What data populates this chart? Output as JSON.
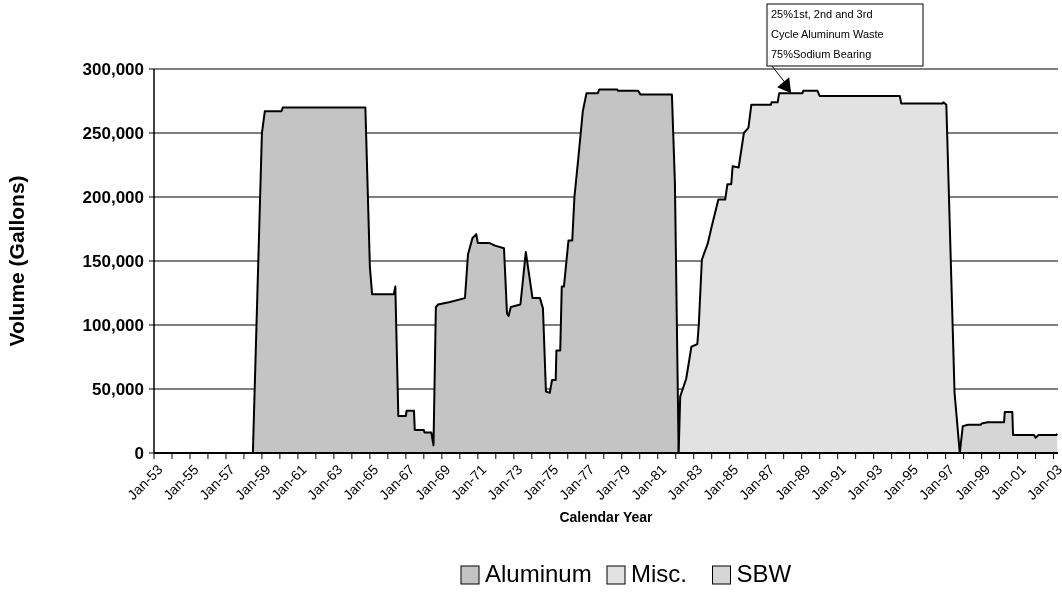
{
  "chart_data": {
    "type": "area",
    "xlabel": "Calendar Year",
    "ylabel": "Volume (Gallons)",
    "grid": "y",
    "legend": "bottom",
    "xlim": [
      "1953-01",
      "2003-04"
    ],
    "ylim": [
      0,
      300000
    ],
    "yticks": [
      0,
      {
        "value": 50000,
        "label": "50,000"
      },
      {
        "value": 100000,
        "label": "100,000"
      },
      {
        "value": 150000,
        "label": "150,000"
      },
      {
        "value": 200000,
        "label": "200,000"
      },
      {
        "value": 250000,
        "label": "250,000"
      },
      {
        "value": 300000,
        "label": "300,000"
      }
    ],
    "xticks": [
      {
        "value": "1953-01",
        "label": "Jan-53"
      },
      {
        "value": "1954-01",
        "label": null
      },
      {
        "value": "1955-01",
        "label": "Jan-55"
      },
      {
        "value": "1956-01",
        "label": null
      },
      {
        "value": "1957-01",
        "label": "Jan-57"
      },
      {
        "value": "1958-01",
        "label": null
      },
      {
        "value": "1959-01",
        "label": "Jan-59"
      },
      {
        "value": "1960-01",
        "label": null
      },
      {
        "value": "1961-01",
        "label": "Jan-61"
      },
      {
        "value": "1962-01",
        "label": null
      },
      {
        "value": "1963-01",
        "label": "Jan-63"
      },
      {
        "value": "1964-01",
        "label": null
      },
      {
        "value": "1965-01",
        "label": "Jan-65"
      },
      {
        "value": "1966-01",
        "label": null
      },
      {
        "value": "1967-01",
        "label": "Jan-67"
      },
      {
        "value": "1968-01",
        "label": null
      },
      {
        "value": "1969-01",
        "label": "Jan-69"
      },
      {
        "value": "1970-01",
        "label": null
      },
      {
        "value": "1971-01",
        "label": "Jan-71"
      },
      {
        "value": "1972-01",
        "label": null
      },
      {
        "value": "1973-01",
        "label": "Jan-73"
      },
      {
        "value": "1974-01",
        "label": null
      },
      {
        "value": "1975-01",
        "label": "Jan-75"
      },
      {
        "value": "1976-01",
        "label": null
      },
      {
        "value": "1977-01",
        "label": "Jan-77"
      },
      {
        "value": "1978-01",
        "label": null
      },
      {
        "value": "1979-01",
        "label": "Jan-79"
      },
      {
        "value": "1980-01",
        "label": null
      },
      {
        "value": "1981-01",
        "label": "Jan-81"
      },
      {
        "value": "1982-01",
        "label": null
      },
      {
        "value": "1983-01",
        "label": "Jan-83"
      },
      {
        "value": "1984-01",
        "label": null
      },
      {
        "value": "1985-01",
        "label": "Jan-85"
      },
      {
        "value": "1986-01",
        "label": null
      },
      {
        "value": "1987-01",
        "label": "Jan-87"
      },
      {
        "value": "1988-01",
        "label": null
      },
      {
        "value": "1989-01",
        "label": "Jan-89"
      },
      {
        "value": "1990-01",
        "label": null
      },
      {
        "value": "1991-01",
        "label": "Jan-91"
      },
      {
        "value": "1992-01",
        "label": null
      },
      {
        "value": "1993-01",
        "label": "Jan-93"
      },
      {
        "value": "1994-01",
        "label": null
      },
      {
        "value": "1995-01",
        "label": "Jan-95"
      },
      {
        "value": "1996-01",
        "label": null
      },
      {
        "value": "1997-01",
        "label": "Jan-97"
      },
      {
        "value": "1998-01",
        "label": null
      },
      {
        "value": "1999-01",
        "label": "Jan-99"
      },
      {
        "value": "2000-01",
        "label": null
      },
      {
        "value": "2001-01",
        "label": "Jan-01"
      },
      {
        "value": "2002-01",
        "label": null
      },
      {
        "value": "2003-01",
        "label": "Jan-03"
      }
    ],
    "annotations": [
      {
        "text": "25%1st, 2nd and 3rd\nCycle Aluminum Waste\n75%Sodium Bearing",
        "x": "1988-06",
        "y": 281000
      }
    ],
    "series": [
      {
        "name": "Aluminum",
        "color": "#c4c4c4",
        "x": [
          "1958-07-01",
          "1959-01-01",
          "1959-03-01",
          "1960-02-01",
          "1960-03-01",
          "1964-10-01",
          "1965-01-01",
          "1965-02-15",
          "1966-05-01",
          "1966-06-01",
          "1966-08-01",
          "1967-01-01",
          "1967-01-15",
          "1967-06-15",
          "1967-07-01",
          "1968-01-01",
          "1968-01-15",
          "1968-06-01",
          "1968-07-15",
          "1968-09-01",
          "1968-10-15",
          "1969-06-15",
          "1970-04-15",
          "1970-06-15",
          "1970-09-15",
          "1970-12-01",
          "1971-01-01",
          "1971-09-01",
          "1971-12-15",
          "1972-06-15",
          "1972-08-15",
          "1972-09-15",
          "1972-11-01",
          "1973-05-15",
          "1973-09-01",
          "1974-01-15",
          "1974-06-15",
          "1974-08-15",
          "1974-10-15",
          "1975-01-01",
          "1975-02-15",
          "1975-05-01",
          "1975-05-15",
          "1975-08-01",
          "1975-09-01",
          "1975-10-15",
          "1976-01-15",
          "1976-04-01",
          "1976-05-15",
          "1976-08-01",
          "1976-11-01",
          "1977-01-15",
          "1977-09-01",
          "1977-10-01",
          "1978-10-01",
          "1978-10-15",
          "1979-12-01",
          "1980-01-15",
          "1981-10-15",
          "1981-12-15",
          "1982-03-01"
        ],
        "values": [
          0,
          250000,
          267000,
          267000,
          270000,
          270000,
          145000,
          124000,
          124000,
          130000,
          29000,
          29000,
          33000,
          33000,
          18000,
          18000,
          16000,
          16000,
          6000,
          114000,
          116000,
          118000,
          121000,
          155000,
          168000,
          171000,
          164000,
          164000,
          162000,
          160000,
          109000,
          107000,
          114000,
          116000,
          157000,
          121000,
          121000,
          113000,
          48000,
          47000,
          57000,
          57000,
          80000,
          80000,
          130000,
          130000,
          166000,
          166000,
          200000,
          230000,
          267000,
          281000,
          281000,
          284000,
          284000,
          283000,
          283000,
          280000,
          280000,
          211000,
          0
        ]
      },
      {
        "name": "Misc.",
        "color": "#e2e2e2",
        "x": [
          "1982-03-01",
          "1982-04-01",
          "1982-08-01",
          "1982-11-15",
          "1983-03-15",
          "1983-04-15",
          "1983-06-15",
          "1983-10-15",
          "1984-01-01",
          "1984-05-15",
          "1984-10-01",
          "1984-11-15",
          "1985-02-01",
          "1985-03-01",
          "1985-07-01",
          "1985-10-15",
          "1986-01-15",
          "1986-03-15",
          "1987-04-15",
          "1987-05-01",
          "1987-09-01",
          "1987-10-01",
          "1989-01-15",
          "1989-02-01",
          "1989-11-15",
          "1990-01-01",
          "1994-06-15",
          "1994-07-15",
          "1996-11-01",
          "1996-11-15",
          "1997-01-15",
          "1997-07-01",
          "1997-10-15"
        ],
        "values": [
          0,
          44000,
          58000,
          83000,
          85000,
          101000,
          151000,
          164000,
          177000,
          198000,
          198000,
          210000,
          210000,
          224000,
          223000,
          250000,
          254000,
          272000,
          272000,
          274000,
          274000,
          281000,
          281000,
          283000,
          283000,
          279000,
          279000,
          273000,
          273000,
          274000,
          272000,
          47000,
          0
        ]
      },
      {
        "name": "SBW",
        "color": "#d6d6d6",
        "x": [
          "1997-10-15",
          "1997-12-15",
          "1998-04-01",
          "1998-12-15",
          "1999-01-01",
          "1999-05-01",
          "2000-04-01",
          "2000-04-15",
          "2000-09-15",
          "2000-10-01",
          "2001-12-01",
          "2002-01-01",
          "2002-03-01",
          "2003-03-01",
          "2003-03-15"
        ],
        "values": [
          0,
          21000,
          22000,
          22000,
          23000,
          24000,
          24000,
          32000,
          32000,
          14000,
          14000,
          12000,
          14000,
          14000,
          15000
        ]
      }
    ]
  }
}
